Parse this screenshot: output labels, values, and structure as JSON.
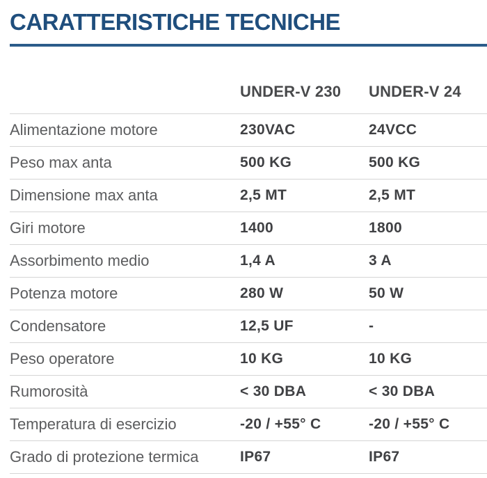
{
  "page": {
    "title": "CARATTERISTICHE TECNICHE"
  },
  "colors": {
    "title_blue": "#1f4e7d",
    "rule_blue": "#2b5c8a",
    "column_header_text": "#48494b",
    "label_text": "#5b5c5e",
    "value_text": "#404144",
    "row_separator": "#d5d5d5",
    "background": "#ffffff"
  },
  "table": {
    "columns": [
      "",
      "UNDER-V 230",
      "UNDER-V 24"
    ],
    "rows": [
      {
        "label": "Alimentazione motore",
        "under_v_230": "230VAC",
        "under_v_24": "24VCC"
      },
      {
        "label": "Peso max anta",
        "under_v_230": "500 KG",
        "under_v_24": "500 KG"
      },
      {
        "label": "Dimensione max anta",
        "under_v_230": "2,5 MT",
        "under_v_24": "2,5 MT"
      },
      {
        "label": "Giri motore",
        "under_v_230": "1400",
        "under_v_24": "1800"
      },
      {
        "label": "Assorbimento medio",
        "under_v_230": "1,4 A",
        "under_v_24": "3 A"
      },
      {
        "label": "Potenza motore",
        "under_v_230": "280 W",
        "under_v_24": "50 W"
      },
      {
        "label": "Condensatore",
        "under_v_230": "12,5 UF",
        "under_v_24": "-"
      },
      {
        "label": "Peso operatore",
        "under_v_230": "10 KG",
        "under_v_24": "10 KG"
      },
      {
        "label": "Rumorosità",
        "under_v_230": "< 30 DBA",
        "under_v_24": "< 30 DBA"
      },
      {
        "label": "Temperatura di esercizio",
        "under_v_230": "-20 / +55° C",
        "under_v_24": "-20 / +55° C"
      },
      {
        "label": "Grado di protezione termica",
        "under_v_230": "IP67",
        "under_v_24": "IP67"
      }
    ]
  }
}
